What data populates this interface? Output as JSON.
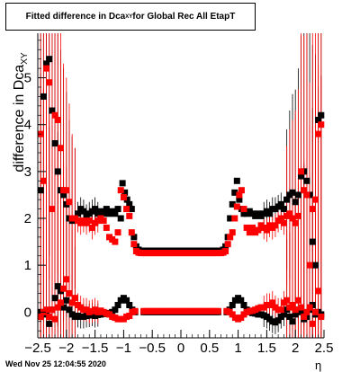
{
  "title": {
    "prefix": "Fitted difference in Dca",
    "subscript": "XY",
    "suffix": " for Global Rec All EtapT"
  },
  "ylabel": {
    "text": "difference in Dca",
    "subscript": "XY"
  },
  "xlabel": "η",
  "footer": "Wed Nov 25 12:04:55 2020",
  "colors": {
    "series_black": "#000000",
    "series_red": "#ff0000",
    "axis": "#000000"
  },
  "chart_data": {
    "type": "scatter",
    "title": "Fitted difference in Dca_XY for Global Rec All EtapT",
    "xlabel": "η",
    "ylabel": "difference in Dca_XY",
    "xlim": [
      -2.5,
      2.5
    ],
    "ylim": [
      -0.55,
      5.95
    ],
    "x_ticks": [
      -2.5,
      -2,
      -1.5,
      -1,
      -0.5,
      0,
      0.5,
      1,
      1.5,
      2,
      2.5
    ],
    "x_tick_labels": [
      "−2.5",
      "−2",
      "−1.5",
      "−1",
      "−0.5",
      "0",
      "0.5",
      "1",
      "1.5",
      "2",
      "2.5"
    ],
    "y_ticks": [
      0,
      1,
      2,
      3,
      4,
      5
    ],
    "y_tick_labels": [
      "0",
      "1",
      "2",
      "3",
      "4",
      "5"
    ],
    "grid": false,
    "legend": "none",
    "series": [
      {
        "marker": "square",
        "color": "#000000",
        "points": [
          [
            -2.45,
            2.6
          ],
          [
            -2.4,
            4.6
          ],
          [
            -2.35,
            5.3
          ],
          [
            -2.3,
            5.4
          ],
          [
            -2.25,
            4.3
          ],
          [
            -2.2,
            3.6
          ],
          [
            -2.15,
            3.0
          ],
          [
            -2.1,
            2.6
          ],
          [
            -2.05,
            2.5
          ],
          [
            -2.0,
            2.3
          ],
          [
            -1.95,
            2.0
          ],
          [
            -1.9,
            1.95
          ],
          [
            -1.85,
            2.0
          ],
          [
            -1.8,
            2.1
          ],
          [
            -1.75,
            2.2
          ],
          [
            -1.7,
            2.15
          ],
          [
            -1.65,
            2.05
          ],
          [
            -1.6,
            2.1
          ],
          [
            -1.55,
            2.15
          ],
          [
            -1.5,
            2.2
          ],
          [
            -1.45,
            2.1
          ],
          [
            -1.4,
            2.15
          ],
          [
            -1.35,
            2.1
          ],
          [
            -1.3,
            2.2
          ],
          [
            -1.25,
            2.1
          ],
          [
            -1.2,
            2.15
          ],
          [
            -1.15,
            2.1
          ],
          [
            -1.1,
            2.2
          ],
          [
            -1.05,
            2.0
          ],
          [
            -1.02,
            2.75
          ],
          [
            -0.98,
            2.55
          ],
          [
            -0.94,
            2.4
          ],
          [
            -0.9,
            2.3
          ],
          [
            -0.86,
            2.2
          ],
          [
            -0.82,
            1.6
          ],
          [
            -0.78,
            1.4
          ],
          [
            -0.74,
            1.33
          ],
          [
            -0.7,
            1.31
          ],
          [
            0.7,
            1.31
          ],
          [
            0.74,
            1.33
          ],
          [
            0.78,
            1.4
          ],
          [
            0.82,
            1.6
          ],
          [
            0.86,
            2.0
          ],
          [
            0.9,
            2.3
          ],
          [
            0.94,
            2.55
          ],
          [
            0.98,
            2.8
          ],
          [
            1.02,
            2.4
          ],
          [
            1.06,
            2.2
          ],
          [
            1.1,
            2.1
          ],
          [
            1.15,
            2.1
          ],
          [
            1.2,
            2.15
          ],
          [
            1.25,
            2.1
          ],
          [
            1.3,
            2.05
          ],
          [
            1.35,
            2.1
          ],
          [
            1.4,
            2.05
          ],
          [
            1.45,
            2.1
          ],
          [
            1.5,
            2.15
          ],
          [
            1.55,
            2.1
          ],
          [
            1.6,
            2.2
          ],
          [
            1.65,
            2.2
          ],
          [
            1.7,
            2.25
          ],
          [
            1.75,
            2.3
          ],
          [
            1.8,
            2.2
          ],
          [
            1.85,
            2.4
          ],
          [
            1.9,
            2.5
          ],
          [
            1.95,
            2.55
          ],
          [
            2.0,
            2.35
          ],
          [
            2.05,
            2.5
          ],
          [
            2.1,
            2.9
          ],
          [
            2.15,
            3.0
          ],
          [
            2.2,
            2.8
          ],
          [
            2.25,
            2.5
          ],
          [
            2.3,
            1.5
          ],
          [
            2.35,
            1.0
          ],
          [
            2.4,
            4.1
          ],
          [
            2.45,
            4.2
          ],
          [
            -2.45,
            0.0
          ],
          [
            -2.4,
            -0.05
          ],
          [
            -2.35,
            -0.02
          ],
          [
            -2.3,
            -0.25
          ],
          [
            -2.25,
            0.05
          ],
          [
            -2.2,
            0.3
          ],
          [
            -2.15,
            0.55
          ],
          [
            -2.1,
            0.45
          ],
          [
            -2.05,
            0.1
          ],
          [
            -2.0,
            0.25
          ],
          [
            -1.95,
            0.05
          ],
          [
            -1.9,
            -0.05
          ],
          [
            -1.85,
            -0.1
          ],
          [
            -1.8,
            -0.08
          ],
          [
            -1.75,
            -0.1
          ],
          [
            -1.7,
            -0.1
          ],
          [
            -1.65,
            -0.08
          ],
          [
            -1.6,
            -0.07
          ],
          [
            -1.55,
            -0.05
          ],
          [
            -1.5,
            -0.08
          ],
          [
            -1.45,
            -0.06
          ],
          [
            -1.4,
            -0.05
          ],
          [
            -1.35,
            -0.04
          ],
          [
            -1.3,
            -0.03
          ],
          [
            -1.25,
            -0.02
          ],
          [
            -1.2,
            0.0
          ],
          [
            -1.15,
            0.05
          ],
          [
            -1.1,
            0.15
          ],
          [
            -1.05,
            0.25
          ],
          [
            -1.0,
            0.3
          ],
          [
            -0.95,
            0.25
          ],
          [
            -0.9,
            0.15
          ],
          [
            -0.85,
            0.05
          ],
          [
            -0.8,
            0.0
          ],
          [
            0.8,
            0.0
          ],
          [
            0.85,
            0.05
          ],
          [
            0.9,
            0.15
          ],
          [
            0.95,
            0.25
          ],
          [
            1.0,
            0.3
          ],
          [
            1.05,
            0.25
          ],
          [
            1.1,
            0.15
          ],
          [
            1.15,
            0.05
          ],
          [
            1.2,
            0.0
          ],
          [
            1.25,
            -0.02
          ],
          [
            1.3,
            -0.03
          ],
          [
            1.35,
            -0.05
          ],
          [
            1.4,
            -0.05
          ],
          [
            1.45,
            -0.07
          ],
          [
            1.5,
            -0.1
          ],
          [
            1.55,
            -0.15
          ],
          [
            1.6,
            -0.2
          ],
          [
            1.65,
            -0.22
          ],
          [
            1.7,
            -0.18
          ],
          [
            1.75,
            -0.1
          ],
          [
            1.8,
            -0.05
          ],
          [
            1.85,
            0.05
          ],
          [
            1.9,
            -0.1
          ],
          [
            1.95,
            -0.2
          ],
          [
            2.0,
            -0.05
          ],
          [
            2.05,
            0.05
          ],
          [
            2.1,
            0.0
          ],
          [
            2.15,
            -0.15
          ],
          [
            2.2,
            -0.1
          ],
          [
            2.25,
            0.05
          ],
          [
            2.3,
            0.15
          ],
          [
            2.35,
            -0.05
          ],
          [
            2.4,
            0.0
          ],
          [
            2.45,
            -0.05
          ]
        ]
      },
      {
        "marker": "square",
        "color": "#ff0000",
        "points": [
          [
            -2.45,
            3.8
          ],
          [
            -2.4,
            2.8
          ],
          [
            -2.35,
            5.2
          ],
          [
            -2.3,
            4.9
          ],
          [
            -2.25,
            2.2
          ],
          [
            -2.2,
            4.2
          ],
          [
            -2.15,
            4.1
          ],
          [
            -2.1,
            3.5
          ],
          [
            -2.05,
            2.6
          ],
          [
            -2.0,
            2.6
          ],
          [
            -1.95,
            2.35
          ],
          [
            -1.9,
            2.0
          ],
          [
            -1.85,
            2.0
          ],
          [
            -1.8,
            1.95
          ],
          [
            -1.75,
            1.9
          ],
          [
            -1.7,
            1.95
          ],
          [
            -1.65,
            1.9
          ],
          [
            -1.6,
            1.95
          ],
          [
            -1.55,
            1.8
          ],
          [
            -1.5,
            1.9
          ],
          [
            -1.45,
            1.95
          ],
          [
            -1.4,
            2.0
          ],
          [
            -1.35,
            1.95
          ],
          [
            -1.3,
            1.8
          ],
          [
            -1.25,
            1.6
          ],
          [
            -1.2,
            1.55
          ],
          [
            -1.15,
            1.5
          ],
          [
            -1.1,
            1.7
          ],
          [
            -1.05,
            2.6
          ],
          [
            -1.0,
            2.45
          ],
          [
            -0.95,
            2.2
          ],
          [
            -0.9,
            2.05
          ],
          [
            -0.86,
            1.7
          ],
          [
            -0.82,
            1.45
          ],
          [
            -0.78,
            1.3
          ],
          [
            -0.74,
            1.27
          ],
          [
            -0.7,
            1.26
          ],
          [
            0.7,
            1.26
          ],
          [
            0.74,
            1.27
          ],
          [
            0.78,
            1.3
          ],
          [
            0.82,
            1.45
          ],
          [
            0.86,
            1.6
          ],
          [
            0.9,
            1.7
          ],
          [
            0.94,
            2.0
          ],
          [
            0.98,
            2.25
          ],
          [
            1.02,
            2.5
          ],
          [
            1.06,
            2.6
          ],
          [
            1.1,
            2.2
          ],
          [
            1.15,
            1.8
          ],
          [
            1.2,
            1.7
          ],
          [
            1.25,
            1.8
          ],
          [
            1.3,
            1.7
          ],
          [
            1.35,
            1.75
          ],
          [
            1.4,
            1.85
          ],
          [
            1.45,
            1.8
          ],
          [
            1.5,
            1.75
          ],
          [
            1.55,
            1.85
          ],
          [
            1.6,
            1.8
          ],
          [
            1.65,
            1.85
          ],
          [
            1.7,
            1.95
          ],
          [
            1.75,
            2.0
          ],
          [
            1.8,
            1.9
          ],
          [
            1.85,
            2.05
          ],
          [
            1.9,
            2.1
          ],
          [
            1.95,
            2.0
          ],
          [
            2.0,
            1.9
          ],
          [
            2.05,
            2.05
          ],
          [
            2.1,
            3.0
          ],
          [
            2.15,
            2.6
          ],
          [
            2.2,
            2.5
          ],
          [
            2.25,
            1.0
          ],
          [
            2.3,
            2.2
          ],
          [
            2.35,
            2.4
          ],
          [
            2.4,
            3.8
          ],
          [
            2.45,
            4.0
          ],
          [
            -2.45,
            -0.1
          ],
          [
            -2.4,
            0.0
          ],
          [
            -2.35,
            0.05
          ],
          [
            -2.3,
            -0.1
          ],
          [
            -2.25,
            0.05
          ],
          [
            -2.2,
            -0.15
          ],
          [
            -2.15,
            0.1
          ],
          [
            -2.1,
            0.2
          ],
          [
            -2.05,
            0.5
          ],
          [
            -2.0,
            0.7
          ],
          [
            -1.95,
            0.4
          ],
          [
            -1.9,
            0.2
          ],
          [
            -1.85,
            0.3
          ],
          [
            -1.8,
            0.15
          ],
          [
            -1.75,
            0.1
          ],
          [
            -1.7,
            0.05
          ],
          [
            -1.65,
            0.05
          ],
          [
            -1.6,
            0.0
          ],
          [
            -1.55,
            0.02
          ],
          [
            -1.5,
            0.05
          ],
          [
            -1.45,
            0.0
          ],
          [
            -1.4,
            0.03
          ],
          [
            -1.35,
            0.0
          ],
          [
            -1.3,
            -0.03
          ],
          [
            -1.25,
            -0.05
          ],
          [
            -1.2,
            -0.1
          ],
          [
            -1.15,
            -0.12
          ],
          [
            -1.1,
            -0.15
          ],
          [
            -1.05,
            -0.15
          ],
          [
            -1.0,
            -0.15
          ],
          [
            -0.95,
            -0.1
          ],
          [
            -0.9,
            -0.08
          ],
          [
            -0.85,
            0.0
          ],
          [
            -0.8,
            0.02
          ],
          [
            0.8,
            0.02
          ],
          [
            0.85,
            0.0
          ],
          [
            0.9,
            -0.05
          ],
          [
            0.95,
            -0.12
          ],
          [
            1.0,
            -0.15
          ],
          [
            1.05,
            -0.12
          ],
          [
            1.1,
            -0.05
          ],
          [
            1.15,
            0.0
          ],
          [
            1.2,
            0.02
          ],
          [
            1.25,
            0.03
          ],
          [
            1.3,
            0.05
          ],
          [
            1.35,
            0.08
          ],
          [
            1.4,
            0.1
          ],
          [
            1.45,
            0.1
          ],
          [
            1.5,
            0.15
          ],
          [
            1.55,
            0.15
          ],
          [
            1.6,
            0.2
          ],
          [
            1.65,
            0.1
          ],
          [
            1.7,
            0.05
          ],
          [
            1.75,
            0.05
          ],
          [
            1.8,
            0.2
          ],
          [
            1.85,
            0.25
          ],
          [
            1.9,
            0.1
          ],
          [
            1.95,
            0.15
          ],
          [
            2.0,
            0.05
          ],
          [
            2.05,
            0.25
          ],
          [
            2.1,
            0.1
          ],
          [
            2.15,
            -0.1
          ],
          [
            2.2,
            0.0
          ],
          [
            2.25,
            0.1
          ],
          [
            2.3,
            -0.25
          ],
          [
            2.35,
            0.0
          ],
          [
            2.4,
            0.45
          ],
          [
            2.45,
            -0.1
          ]
        ]
      }
    ],
    "flat_region": {
      "x_from": -0.7,
      "x_to": 0.7,
      "step": 0.05,
      "black_y": 1.31,
      "red_y": 1.26,
      "black_low_y": 0.0,
      "red_low_y": 0.02
    }
  }
}
